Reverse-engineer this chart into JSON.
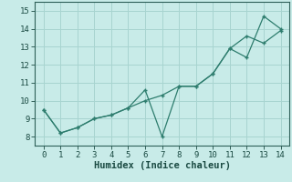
{
  "xlabel": "Humidex (Indice chaleur)",
  "x": [
    0,
    1,
    2,
    3,
    4,
    5,
    6,
    7,
    8,
    9,
    10,
    11,
    12,
    13,
    14
  ],
  "series1": [
    9.5,
    8.2,
    8.5,
    9.0,
    9.2,
    9.6,
    10.6,
    8.0,
    10.8,
    10.8,
    11.5,
    12.9,
    12.4,
    14.7,
    14.0
  ],
  "series2": [
    9.5,
    8.2,
    8.5,
    9.0,
    9.2,
    9.6,
    10.0,
    10.3,
    10.8,
    10.8,
    11.5,
    12.9,
    13.6,
    13.2,
    13.9
  ],
  "line_color": "#2e7d6e",
  "bg_color": "#c8ebe8",
  "grid_color": "#a8d4d0",
  "ylim": [
    7.5,
    15.5
  ],
  "xlim": [
    -0.5,
    14.5
  ],
  "yticks": [
    8,
    9,
    10,
    11,
    12,
    13,
    14,
    15
  ],
  "xticks": [
    0,
    1,
    2,
    3,
    4,
    5,
    6,
    7,
    8,
    9,
    10,
    11,
    12,
    13,
    14
  ],
  "tick_fontsize": 6.5,
  "xlabel_fontsize": 7.5
}
